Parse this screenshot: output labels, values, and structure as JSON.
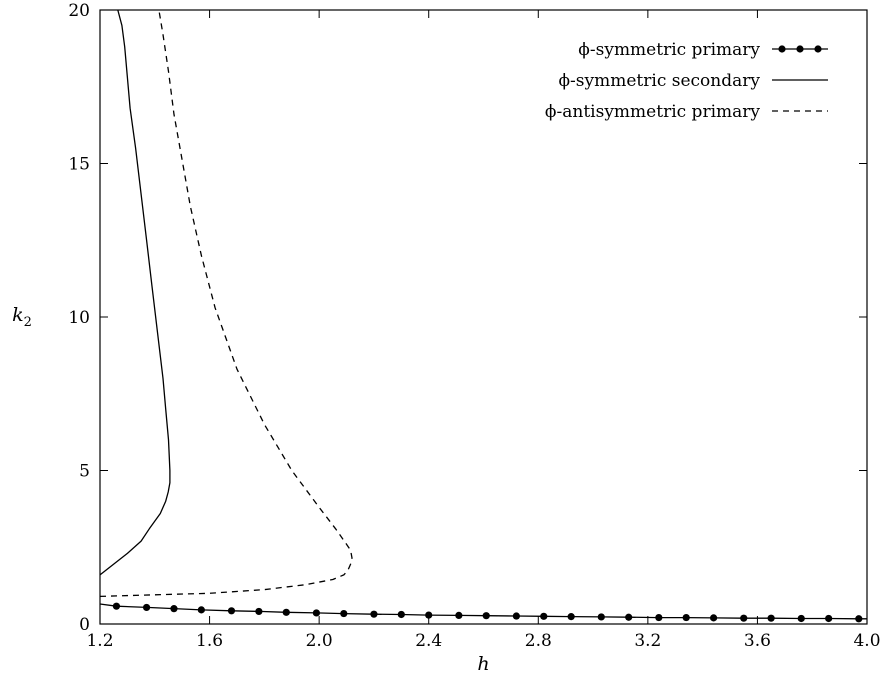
{
  "chart_data": {
    "type": "line",
    "xlabel": "h",
    "ylabel": "k",
    "ylabel_subscript": "2",
    "xlim": [
      1.2,
      4.0
    ],
    "ylim": [
      0,
      20
    ],
    "grid": false,
    "legend_position": "top-right",
    "x_ticks": [
      "1.2",
      "1.6",
      "2.0",
      "2.4",
      "2.8",
      "3.2",
      "3.6",
      "4.0"
    ],
    "y_ticks": [
      "0",
      "5",
      "10",
      "15",
      "20"
    ],
    "series": [
      {
        "name": "ϕ-symmetric primary",
        "style": "line-markers",
        "x": [
          1.2,
          1.26,
          1.37,
          1.47,
          1.57,
          1.68,
          1.78,
          1.88,
          1.99,
          2.09,
          2.2,
          2.3,
          2.4,
          2.51,
          2.61,
          2.72,
          2.82,
          2.92,
          3.03,
          3.13,
          3.24,
          3.34,
          3.44,
          3.55,
          3.65,
          3.76,
          3.86,
          3.97,
          4.0
        ],
        "y": [
          0.65,
          0.58,
          0.54,
          0.5,
          0.46,
          0.43,
          0.41,
          0.38,
          0.36,
          0.34,
          0.32,
          0.31,
          0.29,
          0.28,
          0.27,
          0.26,
          0.25,
          0.24,
          0.23,
          0.22,
          0.21,
          0.21,
          0.2,
          0.19,
          0.19,
          0.18,
          0.18,
          0.17,
          0.17
        ],
        "markers": [
          1.26,
          1.37,
          1.47,
          1.57,
          1.68,
          1.78,
          1.88,
          1.99,
          2.09,
          2.2,
          2.3,
          2.4,
          2.51,
          2.61,
          2.72,
          2.82,
          2.92,
          3.03,
          3.13,
          3.24,
          3.34,
          3.44,
          3.55,
          3.65,
          3.76,
          3.86,
          3.97
        ]
      },
      {
        "name": "ϕ-symmetric secondary",
        "style": "solid",
        "x": [
          1.2,
          1.25,
          1.3,
          1.35,
          1.38,
          1.42,
          1.44,
          1.449,
          1.455,
          1.455,
          1.45,
          1.44,
          1.43,
          1.41,
          1.39,
          1.37,
          1.35,
          1.33,
          1.31,
          1.3,
          1.29,
          1.28,
          1.265
        ],
        "y": [
          1.6,
          1.95,
          2.3,
          2.7,
          3.1,
          3.6,
          4.0,
          4.3,
          4.6,
          5.0,
          6.0,
          7.0,
          8.0,
          9.5,
          11.0,
          12.5,
          14.0,
          15.5,
          16.8,
          17.8,
          18.8,
          19.5,
          20.0
        ]
      },
      {
        "name": "ϕ-antisymmetric primary",
        "style": "dashed",
        "x": [
          1.2,
          1.4,
          1.6,
          1.8,
          1.95,
          2.05,
          2.09,
          2.105,
          2.115,
          2.12,
          2.115,
          2.1,
          2.06,
          2.0,
          1.9,
          1.8,
          1.7,
          1.62,
          1.57,
          1.53,
          1.5,
          1.47,
          1.45,
          1.43,
          1.415
        ],
        "y": [
          0.9,
          0.95,
          1.0,
          1.12,
          1.28,
          1.45,
          1.6,
          1.75,
          1.95,
          2.15,
          2.4,
          2.6,
          3.1,
          3.8,
          5.0,
          6.5,
          8.3,
          10.3,
          12.0,
          13.6,
          15.1,
          16.6,
          18.0,
          19.2,
          20.0
        ]
      }
    ]
  }
}
